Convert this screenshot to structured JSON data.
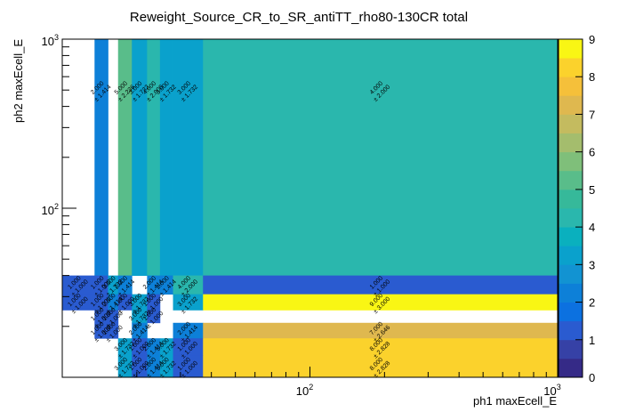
{
  "chart_data": {
    "type": "heatmap",
    "title": "Reweight_Source_CR_to_SR_antiTT_rho80-130CR total",
    "xlabel": "ph1 maxEcell_E",
    "ylabel": "ph2 maxEcell_E",
    "x_scale": "log",
    "y_scale": "log",
    "xlim": [
      10,
      1000
    ],
    "ylim": [
      10,
      1000
    ],
    "x_tick_labels": [
      "10^2",
      "10^3"
    ],
    "y_tick_labels": [
      "10^2",
      "10^3"
    ],
    "z_range": [
      0,
      9
    ],
    "colorbar_ticks": [
      "0",
      "1",
      "2",
      "3",
      "4",
      "5",
      "6",
      "7",
      "8",
      "9"
    ],
    "colorbar_colors": [
      "#352a87",
      "#3641a6",
      "#2a5bd0",
      "#0c71e0",
      "#0d80d8",
      "#1293d2",
      "#0aa1cc",
      "#0ab0be",
      "#2ab7ad",
      "#36b99a",
      "#59bd8a",
      "#7fbf7a",
      "#a4bd6d",
      "#c4bb5f",
      "#dfb84f",
      "#f5c03a",
      "#fbd22c",
      "#f9f614"
    ],
    "x_edges": [
      10,
      13.5,
      15.3,
      16.8,
      19.1,
      22,
      24.8,
      28,
      37,
      1000
    ],
    "y_edges": [
      10,
      13.5,
      17,
      21,
      25,
      31,
      40,
      1000
    ],
    "cells": [
      {
        "ix": 1,
        "iy": 6,
        "value": 2,
        "label": "2.000",
        "error": "± 1.414"
      },
      {
        "ix": 3,
        "iy": 6,
        "value": 5,
        "label": "5.000",
        "error": "± 2.236"
      },
      {
        "ix": 4,
        "iy": 6,
        "value": 3,
        "label": "3.000",
        "error": "± 1.732"
      },
      {
        "ix": 5,
        "iy": 6,
        "value": 4,
        "label": "4.000",
        "error": "± 2.000"
      },
      {
        "ix": 6,
        "iy": 6,
        "value": 3,
        "label": "3.000",
        "error": "± 1.732"
      },
      {
        "ix": 7,
        "iy": 6,
        "value": 3,
        "label": "3.000",
        "error": "± 1.732"
      },
      {
        "ix": 8,
        "iy": 6,
        "value": 4,
        "label": "4.000",
        "error": "± 2.000"
      },
      {
        "ix": 0,
        "iy": 5,
        "value": 1,
        "label": "1.000",
        "error": "± 1.000"
      },
      {
        "ix": 1,
        "iy": 5,
        "value": 1,
        "label": "1.000",
        "error": "± 1.000"
      },
      {
        "ix": 2,
        "iy": 5,
        "value": 3,
        "label": "3.000",
        "error": "± 1.732"
      },
      {
        "ix": 3,
        "iy": 5,
        "value": 2,
        "label": "2.000",
        "error": "± 1.414"
      },
      {
        "ix": 5,
        "iy": 5,
        "value": 2,
        "label": "2.000",
        "error": "± 1.414"
      },
      {
        "ix": 6,
        "iy": 5,
        "value": 2,
        "label": "2.000",
        "error": "± 1.414"
      },
      {
        "ix": 7,
        "iy": 5,
        "value": 4,
        "label": "4.000",
        "error": "± 2.000"
      },
      {
        "ix": 8,
        "iy": 5,
        "value": 1,
        "label": "1.000",
        "error": "± 1.000"
      },
      {
        "ix": 0,
        "iy": 4,
        "value": 1,
        "label": "1.000",
        "error": "± 1.000"
      },
      {
        "ix": 1,
        "iy": 4,
        "value": 1,
        "label": "1.000",
        "error": "± 1.000"
      },
      {
        "ix": 2,
        "iy": 4,
        "value": 2,
        "label": "2.000",
        "error": "± 1.414"
      },
      {
        "ix": 3,
        "iy": 4,
        "value": 1,
        "label": "1.000",
        "error": "± 1.000"
      },
      {
        "ix": 4,
        "iy": 4,
        "value": 3,
        "label": "3.000",
        "error": "± 1.732"
      },
      {
        "ix": 5,
        "iy": 4,
        "value": 1,
        "label": "1.000",
        "error": "± 1.000"
      },
      {
        "ix": 7,
        "iy": 4,
        "value": 3,
        "label": "3.000",
        "error": "± 1.732"
      },
      {
        "ix": 8,
        "iy": 4,
        "value": 9,
        "label": "9.000",
        "error": "± 3.000"
      },
      {
        "ix": 1,
        "iy": 3,
        "value": 1,
        "label": "1.000",
        "error": "± 1.000"
      },
      {
        "ix": 2,
        "iy": 3,
        "value": 1,
        "label": "1.000",
        "error": "± 1.000"
      },
      {
        "ix": 4,
        "iy": 3,
        "value": 3,
        "label": "3.000",
        "error": "± 1.732"
      },
      {
        "ix": 5,
        "iy": 3,
        "value": 1,
        "label": "1.000",
        "error": "± 1.000"
      },
      {
        "ix": 1,
        "iy": 2,
        "value": 1,
        "label": "1.000",
        "error": "± 1.000"
      },
      {
        "ix": 2,
        "iy": 2,
        "value": 1,
        "label": "1.000",
        "error": "± 1.000"
      },
      {
        "ix": 4,
        "iy": 2,
        "value": 2,
        "label": "2.000",
        "error": "± 1.414"
      },
      {
        "ix": 7,
        "iy": 2,
        "value": 2,
        "label": "2.000",
        "error": "± 1.414"
      },
      {
        "ix": 8,
        "iy": 2,
        "value": 7,
        "label": "7.000",
        "error": "± 2.646"
      },
      {
        "ix": 3,
        "iy": 1,
        "value": 3,
        "label": "3.000",
        "error": "± 1.732"
      },
      {
        "ix": 4,
        "iy": 1,
        "value": 1,
        "label": "1.000",
        "error": "± 1.000"
      },
      {
        "ix": 5,
        "iy": 1,
        "value": 2,
        "label": "2.000",
        "error": "± 1.414"
      },
      {
        "ix": 6,
        "iy": 1,
        "value": 3,
        "label": "3.000",
        "error": "± 1.732"
      },
      {
        "ix": 7,
        "iy": 1,
        "value": 1,
        "label": "1.000",
        "error": "± 1.000"
      },
      {
        "ix": 8,
        "iy": 1,
        "value": 8,
        "label": "8.000",
        "error": "± 2.828"
      },
      {
        "ix": 3,
        "iy": 0,
        "value": 3,
        "label": "3.000",
        "error": "± 1.732"
      },
      {
        "ix": 4,
        "iy": 0,
        "value": 1,
        "label": "1.000",
        "error": "± 1.000"
      },
      {
        "ix": 5,
        "iy": 0,
        "value": 2,
        "label": "2.000",
        "error": "± 1.414"
      },
      {
        "ix": 6,
        "iy": 0,
        "value": 3,
        "label": "3.000",
        "error": "± 1.732"
      },
      {
        "ix": 7,
        "iy": 0,
        "value": 1,
        "label": "1.000",
        "error": "± 1.000"
      },
      {
        "ix": 8,
        "iy": 0,
        "value": 8,
        "label": "8.000",
        "error": "± 2.828"
      }
    ],
    "legend": "none",
    "grid": false
  }
}
